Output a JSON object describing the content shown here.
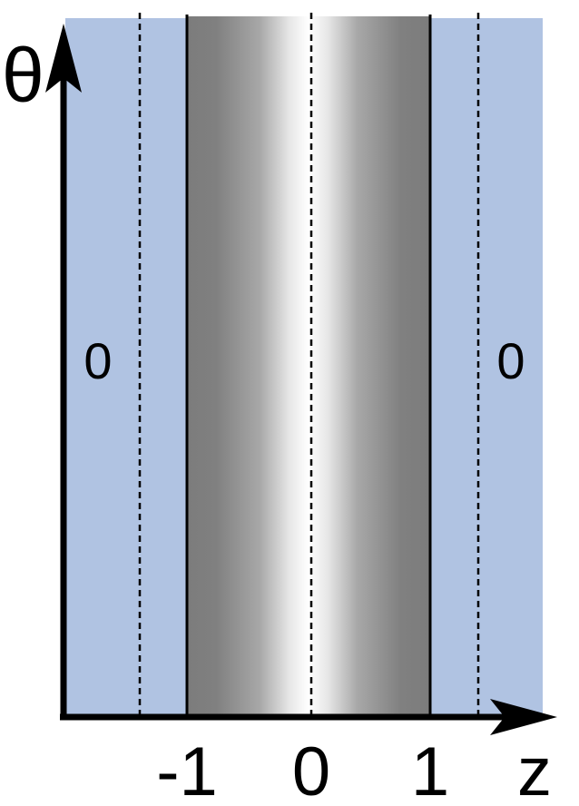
{
  "axes": {
    "y_label": "θ",
    "x_label": "z"
  },
  "x_ticks": [
    "-1",
    "0",
    "1"
  ],
  "region_labels": {
    "left": "0",
    "right": "0"
  },
  "colors": {
    "background_region": "#b0c3e2",
    "band_dark": "#7c7c7c",
    "band_light": "#ffffff",
    "axis": "#000000"
  }
}
